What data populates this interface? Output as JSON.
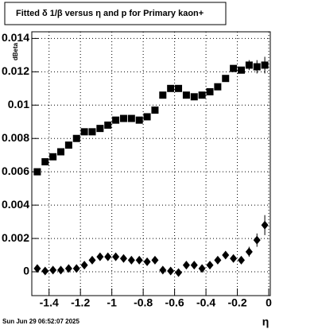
{
  "chart_data": {
    "type": "errorbar",
    "title": "Fitted δ 1/β versus η and p for Primary kaon+",
    "y_label": "dBeta",
    "x_label": "η",
    "timestamp": "Sun Jun 29 06:52:07 2025",
    "x": [
      -1.475,
      -1.425,
      -1.375,
      -1.325,
      -1.275,
      -1.225,
      -1.175,
      -1.125,
      -1.075,
      -1.025,
      -0.975,
      -0.925,
      -0.875,
      -0.825,
      -0.775,
      -0.725,
      -0.675,
      -0.625,
      -0.575,
      -0.525,
      -0.475,
      -0.425,
      -0.375,
      -0.325,
      -0.275,
      -0.225,
      -0.175,
      -0.125,
      -0.075,
      -0.025
    ],
    "series": [
      {
        "marker": "square",
        "color": "#000000",
        "values": [
          0.006,
          0.0066,
          0.0069,
          0.0072,
          0.0076,
          0.008,
          0.0084,
          0.0084,
          0.0086,
          0.0088,
          0.0091,
          0.0092,
          0.0092,
          0.0091,
          0.0093,
          0.0097,
          0.0106,
          0.011,
          0.011,
          0.0106,
          0.0105,
          0.0106,
          0.0108,
          0.0111,
          0.0116,
          0.0122,
          0.0121,
          0.0124,
          0.0123,
          0.0124
        ],
        "errors": [
          0.0001,
          0.0001,
          0.0001,
          0.0001,
          0.0001,
          0.0001,
          0.0001,
          0.0001,
          0.0001,
          0.0001,
          0.0001,
          0.0001,
          0.0001,
          0.0001,
          0.0001,
          0.0001,
          0.0001,
          0.0001,
          0.0001,
          0.0001,
          0.0001,
          0.0001,
          0.0001,
          0.0001,
          0.0001,
          0.0001,
          0.0002,
          0.0003,
          0.0004,
          0.0005
        ]
      },
      {
        "marker": "diamond",
        "color": "#000000",
        "values": [
          0.0002,
          5e-05,
          0.0001,
          0.0001,
          0.0002,
          0.0002,
          0.0004,
          0.0007,
          0.0009,
          0.0009,
          0.0009,
          0.0008,
          0.0007,
          0.0007,
          0.0006,
          0.0007,
          0.0001,
          5e-05,
          -5e-05,
          0.0004,
          0.0004,
          0.0002,
          0.0004,
          0.0007,
          0.001,
          0.0008,
          0.0007,
          0.0012,
          0.0019,
          0.0028
        ],
        "errors": [
          0.0001,
          0.0001,
          0.0001,
          0.0001,
          0.0001,
          0.0001,
          0.0001,
          0.0001,
          0.0001,
          0.0001,
          0.0001,
          0.0001,
          0.0001,
          0.0001,
          0.0001,
          0.0001,
          0.0001,
          0.0001,
          0.0001,
          0.0001,
          0.0001,
          0.0001,
          0.0001,
          0.0001,
          0.0001,
          0.0002,
          0.0002,
          0.0003,
          0.0004,
          0.0006
        ]
      }
    ],
    "xlim": [
      -1.51,
      0.01
    ],
    "ylim": [
      -0.00143,
      0.0144
    ],
    "xticks": [
      -1.4,
      -1.2,
      -1,
      -0.8,
      -0.6,
      -0.4,
      -0.2,
      0
    ],
    "yticks": [
      0,
      0.002,
      0.004,
      0.006,
      0.008,
      0.01,
      0.012,
      0.014
    ],
    "grid": true
  }
}
